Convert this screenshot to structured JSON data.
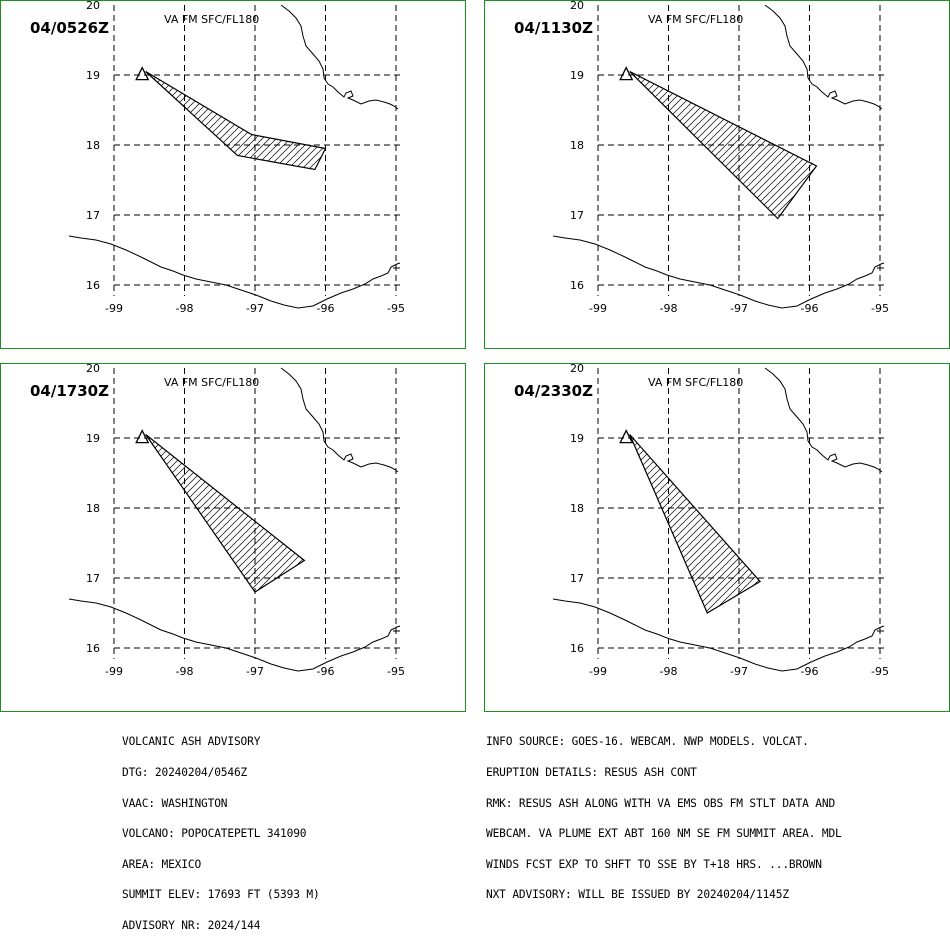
{
  "panels": [
    {
      "time": "04/0526Z",
      "subtitle": "VA FM SFC/FL180",
      "plume": [
        [
          -98.55,
          19.05
        ],
        [
          -97.05,
          18.15
        ],
        [
          -96.0,
          17.95
        ],
        [
          -96.15,
          17.65
        ],
        [
          -97.25,
          17.85
        ]
      ]
    },
    {
      "time": "04/1130Z",
      "subtitle": "VA FM SFC/FL180",
      "plume": [
        [
          -98.55,
          19.05
        ],
        [
          -95.9,
          17.7
        ],
        [
          -96.45,
          16.95
        ]
      ]
    },
    {
      "time": "04/1730Z",
      "subtitle": "VA FM SFC/FL180",
      "plume": [
        [
          -98.55,
          19.05
        ],
        [
          -96.3,
          17.25
        ],
        [
          -97.0,
          16.8
        ]
      ]
    },
    {
      "time": "04/2330Z",
      "subtitle": "VA FM SFC/FL180",
      "plume": [
        [
          -98.55,
          19.05
        ],
        [
          -96.7,
          16.95
        ],
        [
          -97.45,
          16.5
        ]
      ]
    }
  ],
  "axes": {
    "lon_ticks": [
      "-99",
      "-98",
      "-97",
      "-96",
      "-95"
    ],
    "lat_ticks": [
      "20",
      "19",
      "18",
      "17",
      "16"
    ]
  },
  "volcano": {
    "lon": -98.6,
    "lat": 19.02
  },
  "advisory_left": [
    "VOLCANIC ASH ADVISORY",
    "DTG: 20240204/0546Z",
    "VAAC: WASHINGTON",
    "VOLCANO: POPOCATEPETL 341090",
    "AREA: MEXICO",
    "SUMMIT ELEV: 17693 FT (5393 M)",
    "ADVISORY NR: 2024/144"
  ],
  "advisory_right": [
    "INFO SOURCE: GOES-16. WEBCAM. NWP MODELS. VOLCAT.",
    "ERUPTION DETAILS: RESUS ASH CONT",
    "RMK: RESUS ASH ALONG WITH VA EMS OBS FM STLT DATA AND",
    "WEBCAM. VA PLUME EXT ABT 160 NM SE FM SUMMIT AREA. MDL",
    "WINDS FCST EXP TO SHFT TO SSE BY T+18 HRS. ...BROWN",
    "NXT ADVISORY: WILL BE ISSUED BY 20240204/1145Z"
  ]
}
